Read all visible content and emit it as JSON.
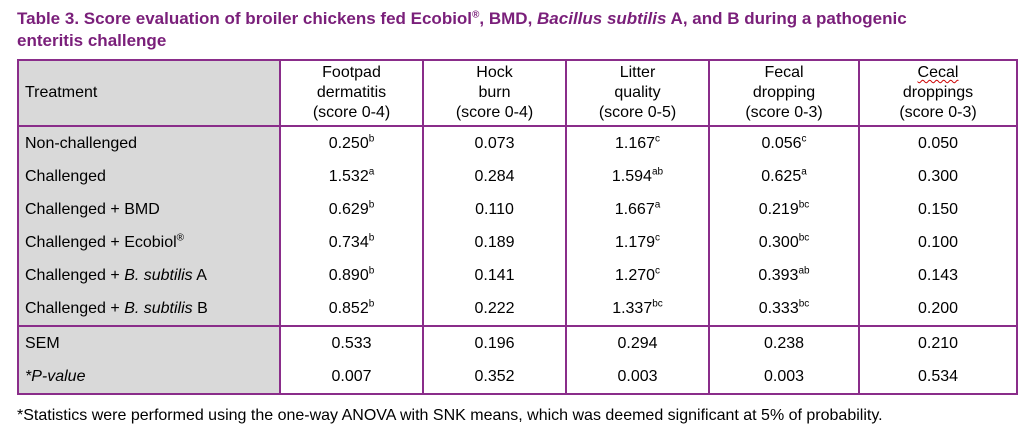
{
  "caption": {
    "prefix": "Table 3.  Score evaluation of broiler chickens fed Ecobiol",
    "reg": "®",
    "middle": ", BMD, ",
    "italic": "Bacillus subtilis",
    "suffix_line1": " A, and B during a pathogenic",
    "line2": "enteritis challenge"
  },
  "headers": {
    "treatment": "Treatment",
    "footpad": [
      "Footpad",
      "dermatitis",
      "(score 0-4)"
    ],
    "hock": [
      "Hock",
      "burn",
      "(score 0-4)"
    ],
    "litter": [
      "Litter",
      "quality",
      "(score 0-5)"
    ],
    "fecal": [
      "Fecal",
      "dropping",
      "(score 0-3)"
    ],
    "cecal": [
      "Cecal",
      "droppings",
      "(score 0-3)"
    ]
  },
  "rows": [
    {
      "name_pre": "Non-challenged",
      "name_it": "",
      "name_post": "",
      "reg": "",
      "footpad": "0.250",
      "footpad_sup": "b",
      "hock": "0.073",
      "litter": "1.167",
      "litter_sup": "c",
      "fecal": "0.056",
      "fecal_sup": "c",
      "cecal": "0.050"
    },
    {
      "name_pre": "Challenged",
      "name_it": "",
      "name_post": "",
      "reg": "",
      "footpad": "1.532",
      "footpad_sup": "a",
      "hock": "0.284",
      "litter": "1.594",
      "litter_sup": "ab",
      "fecal": "0.625",
      "fecal_sup": "a",
      "cecal": "0.300"
    },
    {
      "name_pre": "Challenged + BMD",
      "name_it": "",
      "name_post": "",
      "reg": "",
      "footpad": "0.629",
      "footpad_sup": "b",
      "hock": "0.110",
      "litter": "1.667",
      "litter_sup": "a",
      "fecal": "0.219",
      "fecal_sup": "bc",
      "cecal": "0.150"
    },
    {
      "name_pre": "Challenged + Ecobiol",
      "name_it": "",
      "name_post": "",
      "reg": "®",
      "footpad": "0.734",
      "footpad_sup": "b",
      "hock": "0.189",
      "litter": "1.179",
      "litter_sup": "c",
      "fecal": "0.300",
      "fecal_sup": "bc",
      "cecal": "0.100"
    },
    {
      "name_pre": "Challenged + ",
      "name_it": "B. subtilis",
      "name_post": " A",
      "reg": "",
      "footpad": "0.890",
      "footpad_sup": "b",
      "hock": "0.141",
      "litter": "1.270",
      "litter_sup": "c",
      "fecal": "0.393",
      "fecal_sup": "ab",
      "cecal": "0.143"
    },
    {
      "name_pre": "Challenged + ",
      "name_it": "B. subtilis",
      "name_post": " B",
      "reg": "",
      "footpad": "0.852",
      "footpad_sup": "b",
      "hock": "0.222",
      "litter": "1.337",
      "litter_sup": "bc",
      "fecal": "0.333",
      "fecal_sup": "bc",
      "cecal": "0.200"
    }
  ],
  "sem": {
    "label": "SEM",
    "footpad": "0.533",
    "hock": "0.196",
    "litter": "0.294",
    "fecal": "0.238",
    "cecal": "0.210"
  },
  "pvalue": {
    "label": "*P-value",
    "footpad": "0.007",
    "hock": "0.352",
    "litter": "0.003",
    "fecal": "0.003",
    "cecal": "0.534"
  },
  "footnote": "*Statistics were performed using the one-way ANOVA with SNK means, which was deemed significant at 5% of probability.",
  "colors": {
    "accent": "#7a1f7a",
    "border": "#8a2d8a",
    "treatment_fill": "#d9d9d9"
  }
}
